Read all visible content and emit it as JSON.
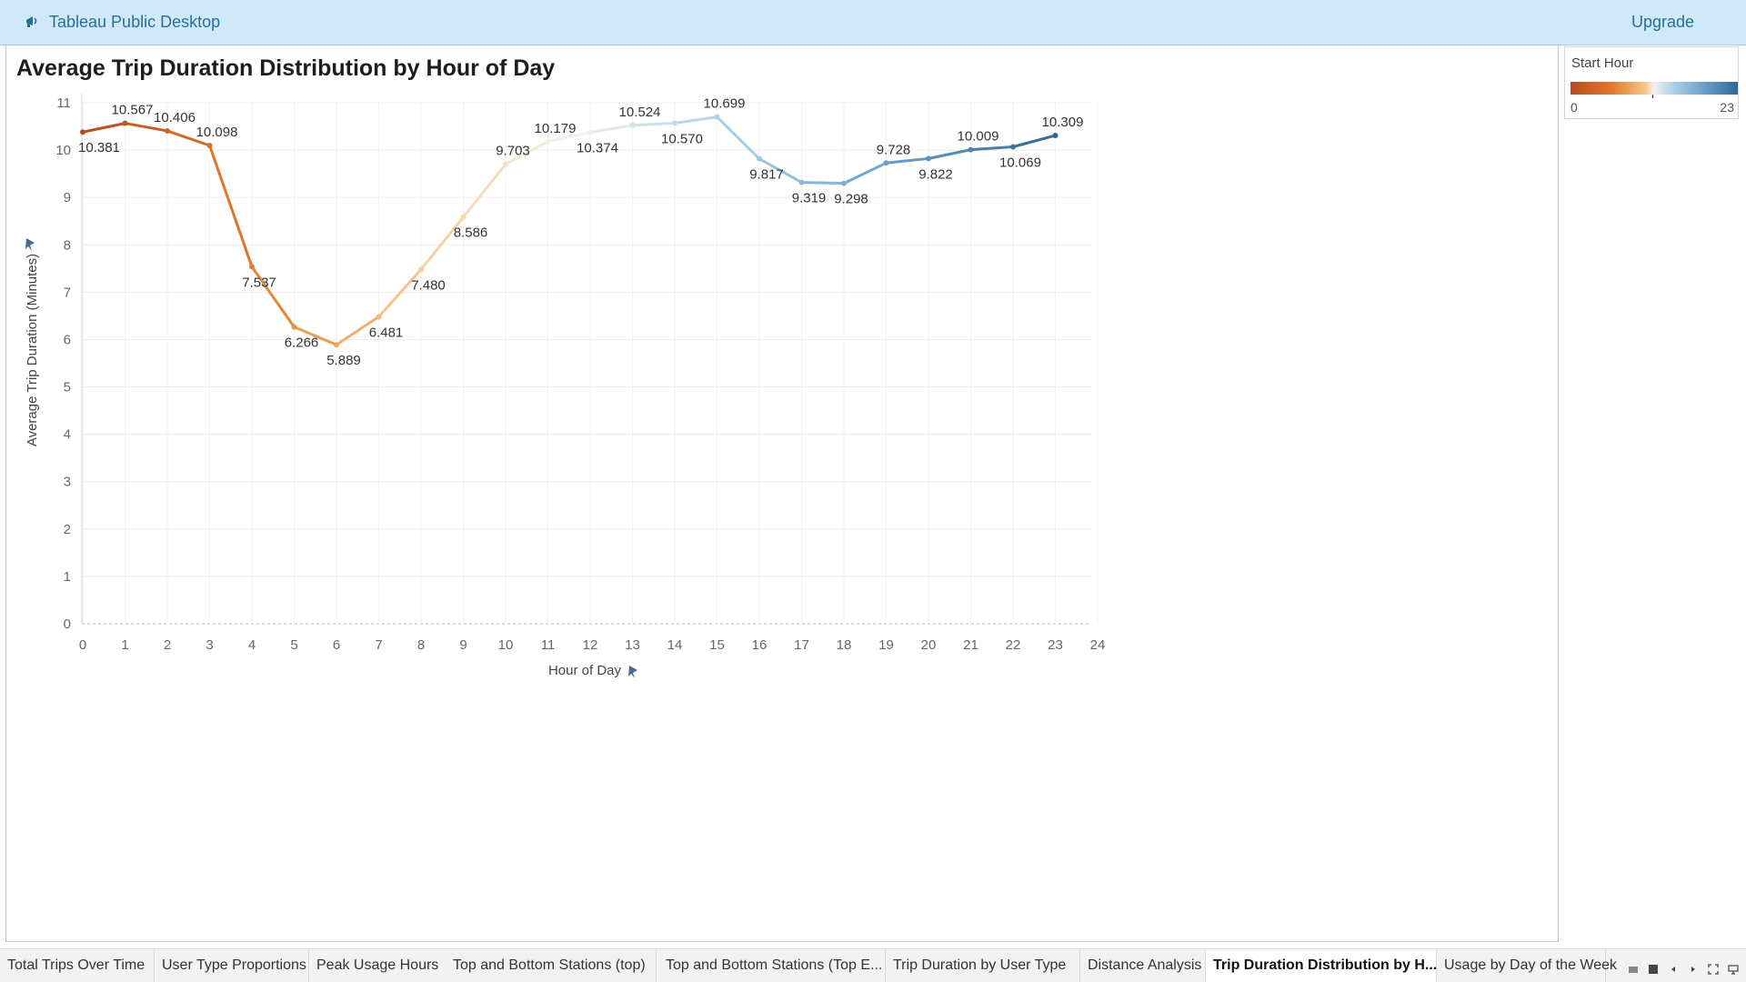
{
  "app": {
    "title": "Tableau Public Desktop",
    "upgrade_label": "Upgrade"
  },
  "sheet": {
    "title": "Average Trip Duration Distribution by Hour of Day"
  },
  "legend": {
    "title": "Start Hour",
    "min_label": "0",
    "max_label": "23"
  },
  "tabs": [
    {
      "label": "Total Trips Over Time",
      "active": false
    },
    {
      "label": "User Type Proportions",
      "active": false
    },
    {
      "label": "Peak Usage Hours",
      "active": false
    },
    {
      "label": "Top and Bottom Stations (top)",
      "active": false
    },
    {
      "label": "Top and Bottom Stations (Top E...",
      "active": false
    },
    {
      "label": "Trip Duration by User Type",
      "active": false
    },
    {
      "label": "Distance Analysis",
      "active": false
    },
    {
      "label": "Trip Duration Distribution by H...",
      "active": true
    },
    {
      "label": "Usage by Day of the Week",
      "active": false
    }
  ],
  "chart_data": {
    "type": "line",
    "title": "Average Trip Duration Distribution by Hour of Day",
    "xlabel": "Hour of Day",
    "ylabel": "Average Trip Duration (Minutes)",
    "x": [
      0,
      1,
      2,
      3,
      4,
      5,
      6,
      7,
      8,
      9,
      10,
      11,
      12,
      13,
      14,
      15,
      16,
      17,
      18,
      19,
      20,
      21,
      22,
      23
    ],
    "y": [
      10.381,
      10.567,
      10.406,
      10.098,
      7.537,
      6.266,
      5.889,
      6.481,
      7.48,
      8.586,
      9.703,
      10.179,
      10.374,
      10.524,
      10.57,
      10.699,
      9.817,
      9.319,
      9.298,
      9.728,
      9.822,
      10.009,
      10.069,
      10.309
    ],
    "data_labels": [
      "10.381",
      "10.567",
      "10.406",
      "10.098",
      "7.537",
      "6.266",
      "5.889",
      "6.481",
      "7.480",
      "8.586",
      "9.703",
      "10.179",
      "10.374",
      "10.524",
      "10.570",
      "10.699",
      "9.817",
      "9.319",
      "9.298",
      "9.728",
      "9.822",
      "10.009",
      "10.069",
      "10.309"
    ],
    "xticks": [
      "0",
      "1",
      "2",
      "3",
      "4",
      "5",
      "6",
      "7",
      "8",
      "9",
      "10",
      "11",
      "12",
      "13",
      "14",
      "15",
      "16",
      "17",
      "18",
      "19",
      "20",
      "21",
      "22",
      "23",
      "24"
    ],
    "yticks": [
      "0",
      "1",
      "2",
      "3",
      "4",
      "5",
      "6",
      "7",
      "8",
      "9",
      "10",
      "11"
    ],
    "xlim": [
      0,
      24
    ],
    "ylim": [
      0,
      11
    ],
    "grid": true,
    "color_encoding": "Start Hour",
    "color_range": [
      "#b8491f",
      "#e07a2a",
      "#f6c98e",
      "#f2f2ef",
      "#a9cfe6",
      "#6b9fc9",
      "#2f6797"
    ]
  }
}
